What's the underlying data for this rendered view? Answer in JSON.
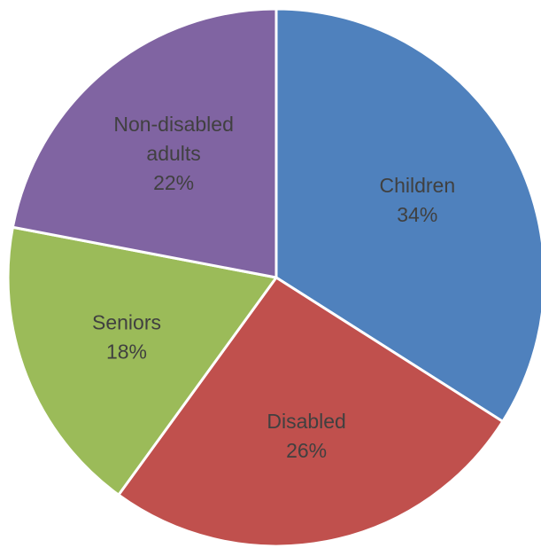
{
  "chart_data": {
    "type": "pie",
    "title": "",
    "start_angle_deg": 0,
    "direction": "clockwise",
    "slices": [
      {
        "label": "Children",
        "label_lines": [
          "Children"
        ],
        "percent_label": "34%",
        "value": 34,
        "color": "#4f81bd"
      },
      {
        "label": "Disabled",
        "label_lines": [
          "Disabled"
        ],
        "percent_label": "26%",
        "value": 26,
        "color": "#c0504d"
      },
      {
        "label": "Seniors",
        "label_lines": [
          "Seniors"
        ],
        "percent_label": "18%",
        "value": 18,
        "color": "#9bbb59"
      },
      {
        "label": "Non-disabled adults",
        "label_lines": [
          "Non-disabled",
          "adults"
        ],
        "percent_label": "22%",
        "value": 22,
        "color": "#8064a2"
      }
    ],
    "edge_color": "#ffffff",
    "label_color": "#404040"
  }
}
